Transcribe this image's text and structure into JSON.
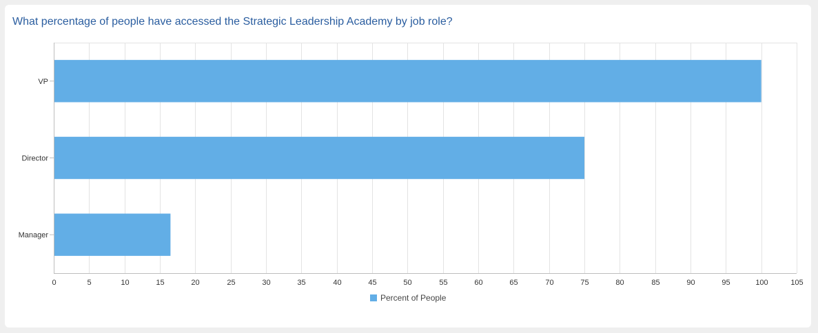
{
  "card": {
    "title": "What percentage of people have accessed the Strategic Leadership Academy by job role?"
  },
  "chart_data": {
    "type": "bar",
    "orientation": "horizontal",
    "title": "What percentage of people have accessed the Strategic Leadership Academy by job role?",
    "categories": [
      "VP",
      "Director",
      "Manager"
    ],
    "series": [
      {
        "name": "Percent of People",
        "values": [
          100,
          75,
          16.5
        ],
        "color": "#62aee6"
      }
    ],
    "xlim": [
      0,
      105
    ],
    "xticks": [
      0,
      5,
      10,
      15,
      20,
      25,
      30,
      35,
      40,
      45,
      50,
      55,
      60,
      65,
      70,
      75,
      80,
      85,
      90,
      95,
      100,
      105
    ],
    "grid": true,
    "legend_position": "bottom-center"
  }
}
